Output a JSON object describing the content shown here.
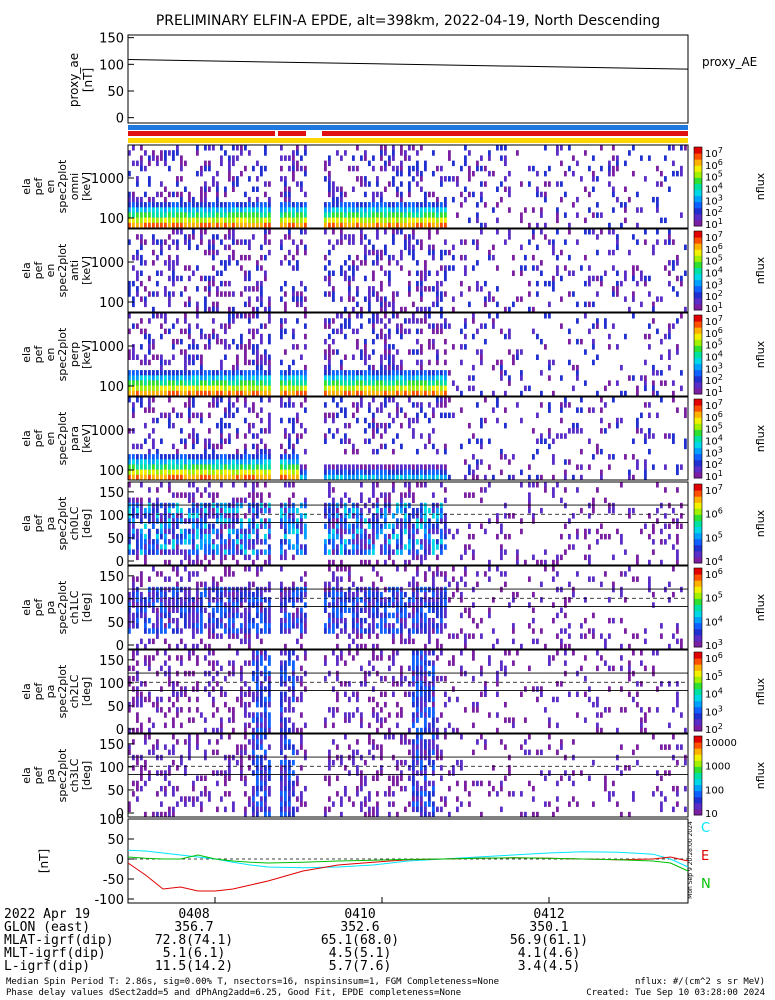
{
  "title": "PRELIMINARY ELFIN-A EPDE, alt=398km, 2022-04-19, North Descending",
  "proxy_panel": {
    "ylabel_lines": [
      "proxy_ae",
      "[nT]"
    ],
    "yticks": [
      "150",
      "100",
      "50",
      "0"
    ],
    "legend": "proxy_AE"
  },
  "spectro_panels": [
    {
      "id": "en-all",
      "ylabel_lines": [
        "ela",
        "pef",
        "en",
        "spec2plot",
        "omni",
        "[keV]"
      ],
      "yticks": [
        "1000",
        "100"
      ],
      "cbar_label": "nflux"
    },
    {
      "id": "en-perp",
      "ylabel_lines": [
        "ela",
        "pef",
        "en",
        "spec2plot",
        "anti",
        "[keV]"
      ],
      "yticks": [
        "1000",
        "100"
      ],
      "cbar_label": "nflux"
    },
    {
      "id": "en-para",
      "ylabel_lines": [
        "ela",
        "pef",
        "en",
        "spec2plot",
        "perp",
        "[keV]"
      ],
      "yticks": [
        "1000",
        "100"
      ],
      "cbar_label": "nflux"
    },
    {
      "id": "en-anti",
      "ylabel_lines": [
        "ela",
        "pef",
        "en",
        "spec2plot",
        "para",
        "[keV]"
      ],
      "yticks": [
        "1000",
        "100"
      ],
      "cbar_label": "nflux"
    },
    {
      "id": "pa-ch0",
      "ylabel_lines": [
        "ela",
        "pef",
        "pa",
        "spec2plot",
        "ch0LC",
        "[deg]"
      ],
      "yticks": [
        "150",
        "100",
        "50",
        "0"
      ],
      "cbar_label": "nflux"
    },
    {
      "id": "pa-ch1",
      "ylabel_lines": [
        "ela",
        "pef",
        "pa",
        "spec2plot",
        "ch1LC",
        "[deg]"
      ],
      "yticks": [
        "150",
        "100",
        "50",
        "0"
      ],
      "cbar_label": "nflux"
    },
    {
      "id": "pa-ch2",
      "ylabel_lines": [
        "ela",
        "pef",
        "pa",
        "spec2plot",
        "ch2LC",
        "[deg]"
      ],
      "yticks": [
        "150",
        "100",
        "50",
        "0"
      ],
      "cbar_label": "nflux"
    },
    {
      "id": "pa-ch3",
      "ylabel_lines": [
        "ela",
        "pef",
        "pa",
        "spec2plot",
        "ch3LC",
        "[deg]"
      ],
      "yticks": [
        "150",
        "100",
        "50",
        "0"
      ],
      "cbar_label": "nflux"
    }
  ],
  "colorbar_ticks": {
    "cb0": [
      "10^7",
      "10^6",
      "10^5",
      "10^4",
      "10^3",
      "10^2",
      "10^1"
    ],
    "cb1": [
      "10^7",
      "10^6",
      "10^5",
      "10^4",
      "10^3",
      "10^2",
      "10^1"
    ],
    "cb2": [
      "10^7",
      "10^6",
      "10^5",
      "10^4",
      "10^3",
      "10^2",
      "10^1"
    ],
    "cb3": [
      "10^7",
      "10^6",
      "10^5",
      "10^4",
      "10^3",
      "10^2",
      "10^1"
    ],
    "cb4": [
      "10^7",
      "10^6",
      "10^5",
      "10^4"
    ],
    "cb5": [
      "10^6",
      "10^5",
      "10^4",
      "10^3"
    ],
    "cb6": [
      "10^6",
      "10^5",
      "10^4",
      "10^3",
      "10^2"
    ],
    "cb7": [
      "10000",
      "1000",
      "100",
      "10"
    ]
  },
  "bfield_panel": {
    "ylabel": "[nT]",
    "yticks": [
      "100",
      "50",
      "0",
      "-50",
      "-100"
    ],
    "legend": [
      {
        "label": "C",
        "color": "#00e5ff"
      },
      {
        "label": "E",
        "color": "#e00000"
      },
      {
        "label": "N",
        "color": "#00c000"
      }
    ],
    "side_note": "Mon Sep 9 20:28:00 2024"
  },
  "chart_data": [
    {
      "type": "line",
      "title": "PRELIMINARY ELFIN-A EPDE, alt=398km, 2022-04-19, North Descending",
      "ylabel": "proxy_ae [nT]",
      "ylim": [
        -10,
        155
      ],
      "x_minutes": [
        0,
        16
      ],
      "series": [
        {
          "name": "proxy_AE",
          "x": [
            0,
            16
          ],
          "y": [
            109,
            91
          ]
        }
      ]
    },
    {
      "type": "line",
      "ylabel": "[nT]",
      "ylim": [
        -110,
        100
      ],
      "series": [
        {
          "name": "C",
          "x": [
            0,
            0.5,
            1,
            1.5,
            2,
            2.5,
            3,
            3.5,
            4,
            5,
            6,
            7,
            8,
            9,
            10,
            11,
            12,
            13,
            14,
            15,
            15.5,
            16
          ],
          "y": [
            22,
            20,
            15,
            10,
            5,
            0,
            -8,
            -15,
            -20,
            -22,
            -20,
            -15,
            -5,
            0,
            5,
            10,
            15,
            18,
            17,
            12,
            0,
            -20
          ]
        },
        {
          "name": "E",
          "x": [
            0,
            0.5,
            1,
            1.5,
            2,
            2.5,
            3,
            3.5,
            4,
            5,
            6,
            7,
            8,
            9,
            10,
            11,
            12,
            13,
            14,
            15,
            15.5,
            16
          ],
          "y": [
            -10,
            -40,
            -75,
            -70,
            -80,
            -80,
            -75,
            -65,
            -55,
            -30,
            -15,
            -8,
            -2,
            0,
            2,
            3,
            2,
            0,
            -2,
            0,
            5,
            -5
          ]
        },
        {
          "name": "N",
          "x": [
            0,
            0.5,
            1,
            1.5,
            2,
            2.5,
            3,
            3.5,
            4,
            5,
            6,
            7,
            8,
            9,
            10,
            11,
            12,
            13,
            14,
            15,
            15.5,
            16
          ],
          "y": [
            5,
            2,
            0,
            0,
            10,
            0,
            -5,
            -8,
            -10,
            -8,
            -5,
            -3,
            -1,
            0,
            2,
            3,
            2,
            0,
            -2,
            -5,
            -10,
            -30
          ]
        }
      ]
    }
  ],
  "xaxis": {
    "ticks": [
      "0408",
      "0410",
      "0412"
    ]
  },
  "table": {
    "labels": [
      "2022 Apr 19",
      "GLON (east)",
      "MLAT-igrf(dip)",
      "MLT-igrf(dip)",
      "L-igrf(dip)"
    ],
    "columns": [
      [
        "0408",
        "356.7",
        "72.8(74.1)",
        "5.1(6.1)",
        "11.5(14.2)"
      ],
      [
        "0410",
        "352.6",
        "65.1(68.0)",
        "4.5(5.1)",
        "5.7(7.6)"
      ],
      [
        "0412",
        "350.1",
        "56.9(61.1)",
        "4.1(4.6)",
        "3.4(4.5)"
      ]
    ]
  },
  "footer": {
    "left1": "Median Spin Period T: 2.86s, sig=0.00% T, nsectors=16, nspinsinsum=1, FGM Completeness=None",
    "left2": "Phase delay values dSect2add=5 and dPhAng2add=6.25, Good Fit, EPDE completeness=None",
    "right1": "nflux: #/(cm^2 s sr MeV)",
    "right2": "Created: Tue Sep 10 03:28:00 2024"
  },
  "colors": {
    "bar_blue": "#1f78e0",
    "bar_red": "#e11010",
    "bar_yellow": "#ffd400",
    "legend_cyan": "#00e5ff"
  }
}
